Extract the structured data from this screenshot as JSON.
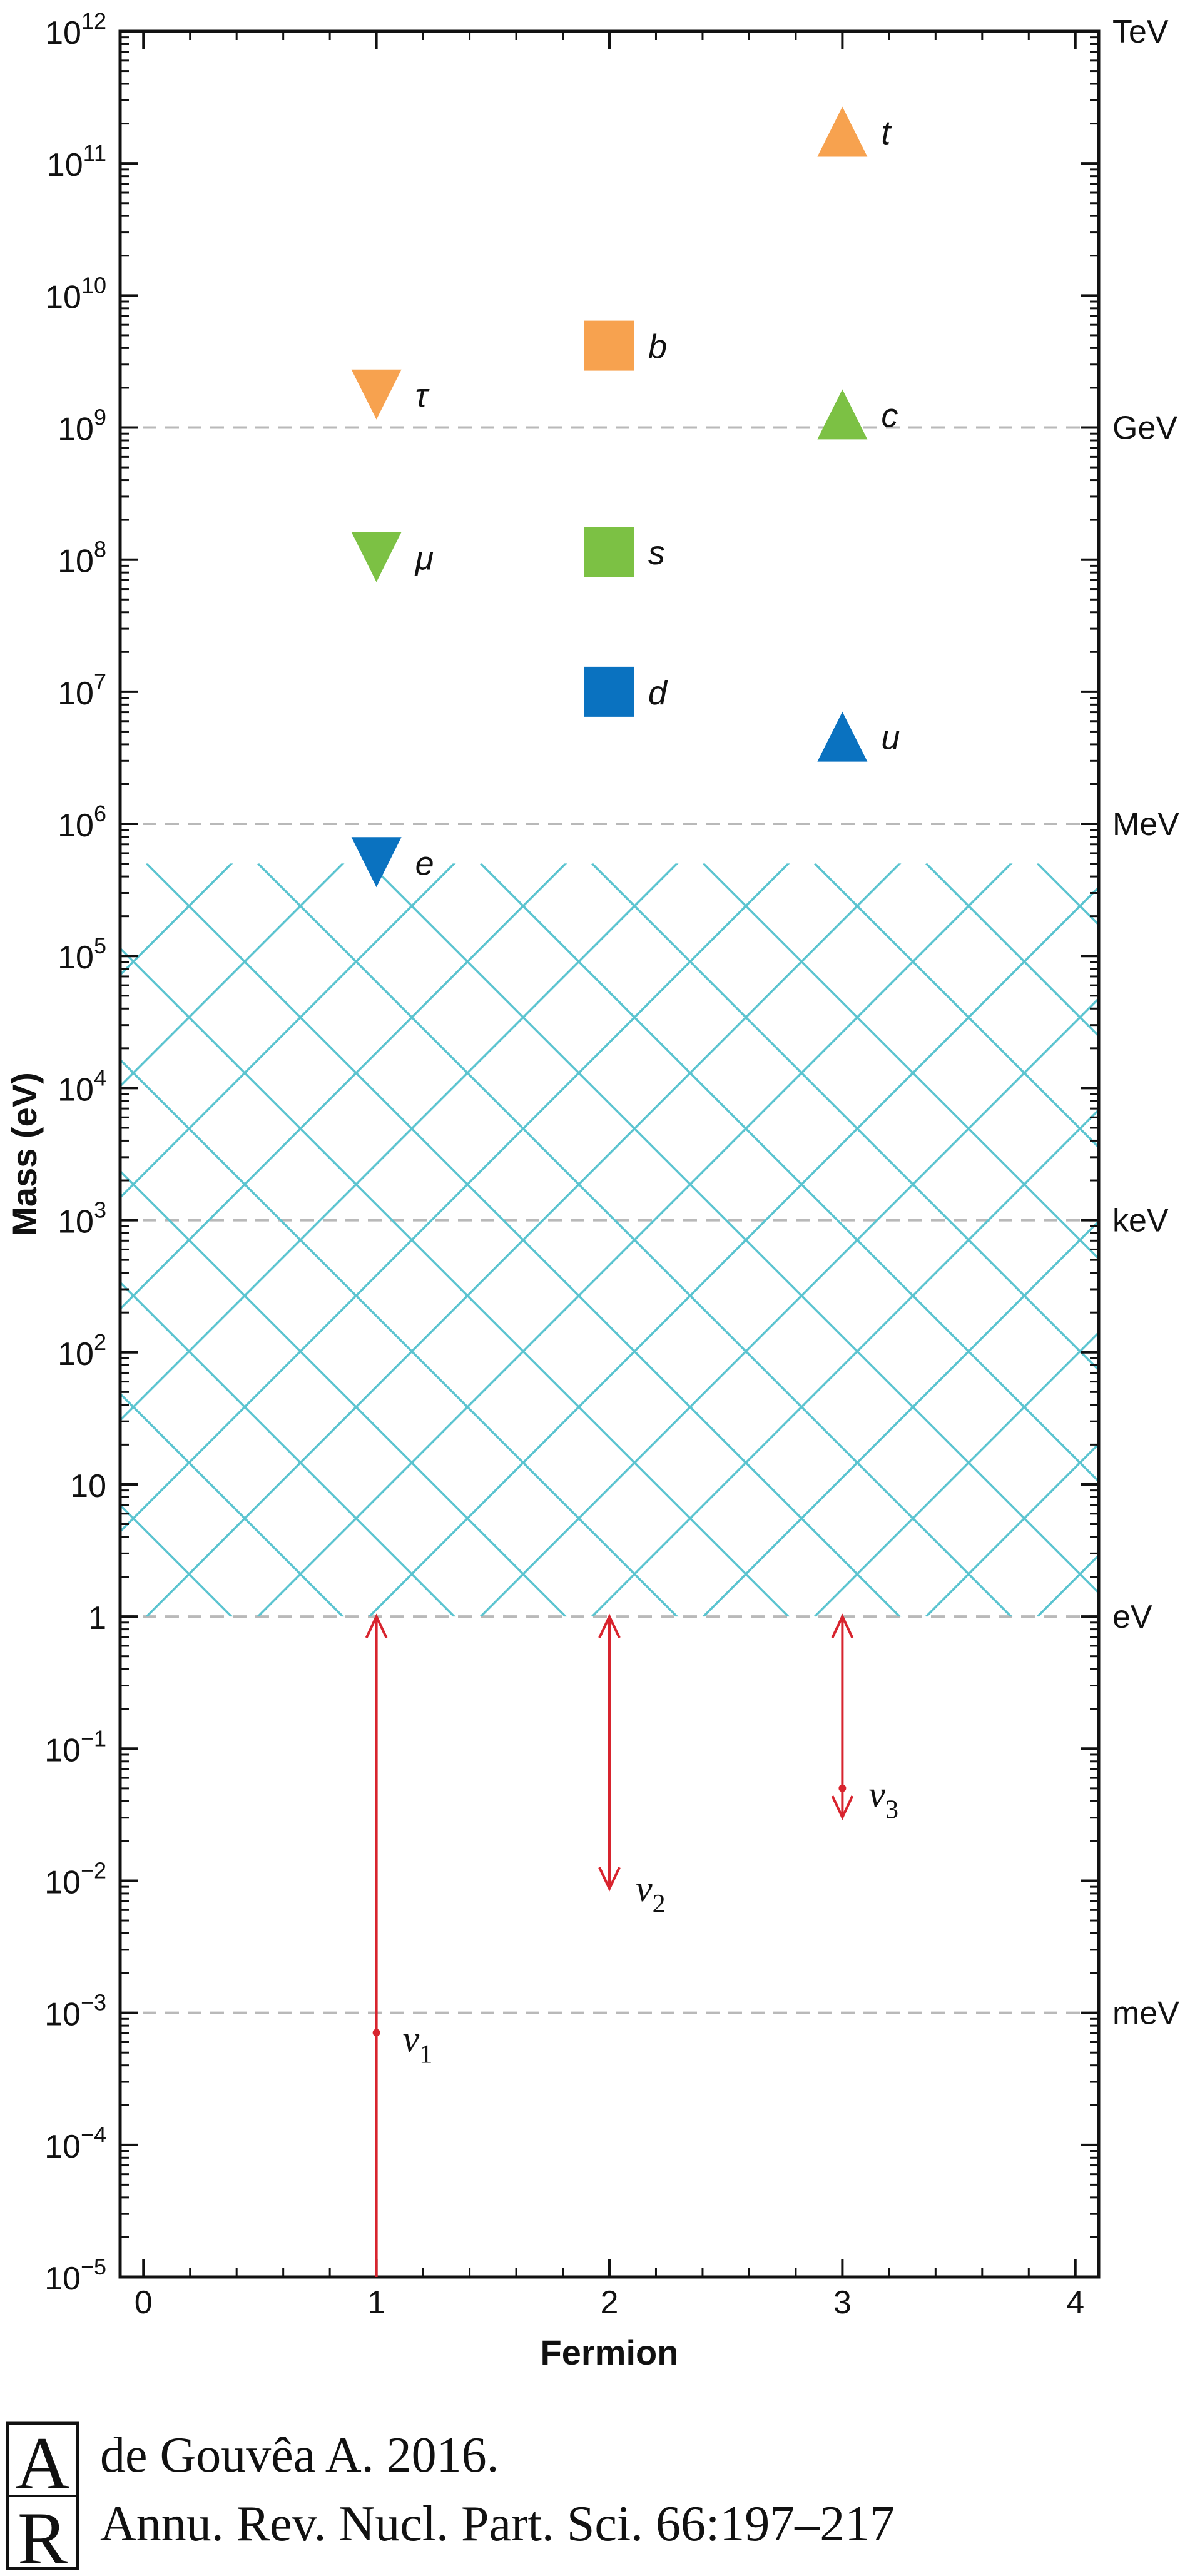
{
  "chart_data": {
    "type": "scatter",
    "xlabel": "Fermion",
    "ylabel": "Mass (eV)",
    "xlim": [
      -0.1,
      4.1
    ],
    "ylim_log10": [
      -5,
      12
    ],
    "y_scale": "log",
    "x_ticks": [
      "0",
      "1",
      "2",
      "3",
      "4"
    ],
    "y_ticks": [
      {
        "base": "10",
        "exp": "12",
        "log": 12
      },
      {
        "base": "10",
        "exp": "11",
        "log": 11
      },
      {
        "base": "10",
        "exp": "10",
        "log": 10
      },
      {
        "base": "10",
        "exp": "9",
        "log": 9
      },
      {
        "base": "10",
        "exp": "8",
        "log": 8
      },
      {
        "base": "10",
        "exp": "7",
        "log": 7
      },
      {
        "base": "10",
        "exp": "6",
        "log": 6
      },
      {
        "base": "10",
        "exp": "5",
        "log": 5
      },
      {
        "base": "10",
        "exp": "4",
        "log": 4
      },
      {
        "base": "10",
        "exp": "3",
        "log": 3
      },
      {
        "base": "10",
        "exp": "2",
        "log": 2
      },
      {
        "base": "10",
        "exp": "",
        "log": 1
      },
      {
        "base": "1",
        "exp": "",
        "log": 0
      },
      {
        "base": "10",
        "exp": "−1",
        "log": -1
      },
      {
        "base": "10",
        "exp": "−2",
        "log": -2
      },
      {
        "base": "10",
        "exp": "−3",
        "log": -3
      },
      {
        "base": "10",
        "exp": "−4",
        "log": -4
      },
      {
        "base": "10",
        "exp": "−5",
        "log": -5
      }
    ],
    "right_axis_labels": [
      {
        "label": "TeV",
        "log": 12
      },
      {
        "label": "GeV",
        "log": 9
      },
      {
        "label": "MeV",
        "log": 6
      },
      {
        "label": "keV",
        "log": 3
      },
      {
        "label": "eV",
        "log": 0
      },
      {
        "label": "meV",
        "log": -3
      }
    ],
    "grid": "dashed at 1 meV, 1 eV, 1 keV, 1 MeV, 1 GeV",
    "hatched_region": {
      "x_range": [
        -0.1,
        4.1
      ],
      "log_range": [
        0,
        5.7
      ],
      "color": "#5bc4d0"
    },
    "series": [
      {
        "marker": "triangle-down",
        "points": [
          {
            "label": "e",
            "x": 1,
            "log_mass": 5.71,
            "color": "#0a72c0"
          },
          {
            "label": "μ",
            "x": 1,
            "log_mass": 8.02,
            "color": "#7cc144"
          },
          {
            "label": "τ",
            "x": 1,
            "log_mass": 9.25,
            "color": "#f7a24f"
          }
        ]
      },
      {
        "marker": "square",
        "points": [
          {
            "label": "d",
            "x": 2,
            "log_mass": 7.0,
            "color": "#0a72c0"
          },
          {
            "label": "s",
            "x": 2,
            "log_mass": 8.06,
            "color": "#7cc144"
          },
          {
            "label": "b",
            "x": 2,
            "log_mass": 9.62,
            "color": "#f7a24f"
          }
        ]
      },
      {
        "marker": "triangle-up",
        "points": [
          {
            "label": "u",
            "x": 3,
            "log_mass": 6.66,
            "color": "#0a72c0"
          },
          {
            "label": "c",
            "x": 3,
            "log_mass": 9.1,
            "color": "#7cc144"
          },
          {
            "label": "t",
            "x": 3,
            "log_mass": 11.24,
            "color": "#f7a24f"
          }
        ]
      }
    ],
    "neutrinos": [
      {
        "sym": "ν",
        "sub": "1",
        "x": 1,
        "log_low": -5,
        "log_high": 0,
        "log_point": -3.15,
        "arrow_low": false
      },
      {
        "sym": "ν",
        "sub": "2",
        "x": 2,
        "log_low": -2.06,
        "log_high": 0,
        "log_point": null,
        "arrow_low": true
      },
      {
        "sym": "ν",
        "sub": "3",
        "x": 3,
        "log_low": -1.52,
        "log_high": 0,
        "log_point": -1.3,
        "arrow_low": true
      }
    ],
    "neutrino_color": "#d8242e"
  },
  "citation": {
    "line1": "de Gouvêa A. 2016.",
    "line2": "Annu. Rev. Nucl. Part. Sci. 66:197–217",
    "logo_letters": "AR"
  }
}
